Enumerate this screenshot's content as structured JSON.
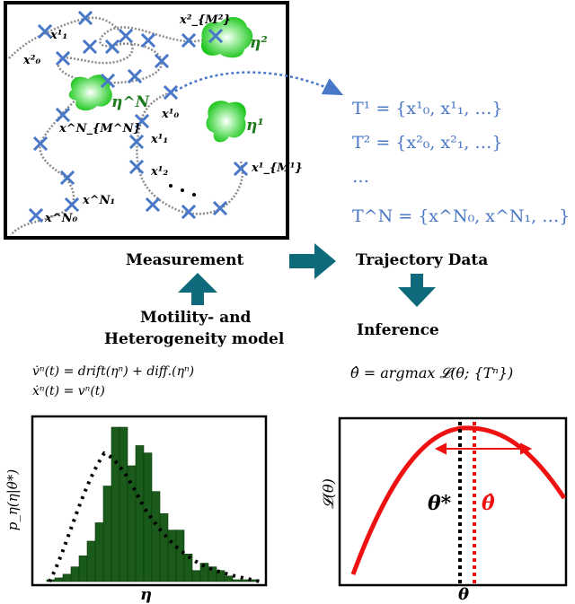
{
  "measurement": {
    "cell_labels": [
      "η²",
      "η^N",
      "η¹"
    ],
    "point_labels": [
      {
        "t": "x¹₁",
        "pos": "a"
      },
      {
        "t": "x²₀",
        "pos": "b"
      },
      {
        "t": "x²_{M²}",
        "pos": "c"
      },
      {
        "t": "x^N_{M^N}",
        "pos": "d"
      },
      {
        "t": "x¹₀",
        "pos": "e"
      },
      {
        "t": "x¹₁",
        "pos": "f"
      },
      {
        "t": "x¹₂",
        "pos": "g"
      },
      {
        "t": "x¹_{M¹}",
        "pos": "h"
      },
      {
        "t": "x^N₁",
        "pos": "i"
      },
      {
        "t": "x^N₀",
        "pos": "j"
      }
    ],
    "ellipsis": ". . ."
  },
  "trajectory_equations": [
    "T¹ = {x¹₀, x¹₁, …}",
    "T² = {x²₀, x²₁, …}",
    "…",
    "T^N = {x^N₀, x^N₁, …}"
  ],
  "flow": {
    "measurement": "Measurement",
    "trajectory_data": "Trajectory Data",
    "model_line1": "Motility- and",
    "model_line2": "Heterogeneity model",
    "inference": "Inference"
  },
  "equations": {
    "motion1": "v̇ⁿ(t) = drift(ηⁿ) + diff.(ηⁿ)",
    "motion2": "ẋⁿ(t) = vⁿ(t)",
    "estimator": "θ̂ = argmax 𝓛(θ; {Tⁿ})"
  },
  "chart_data": [
    {
      "type": "bar",
      "title": "",
      "xlabel": "η",
      "ylabel": "p_η(η|θ*)",
      "values": [
        1,
        2,
        4,
        8,
        14,
        22,
        32,
        52,
        84,
        84,
        63,
        74,
        70,
        49,
        37,
        28,
        28,
        15,
        6,
        10,
        8,
        6,
        3,
        1,
        1,
        1
      ],
      "curve": "dotted",
      "colors": {
        "bar": "#1a5a1a",
        "curve": "#000000"
      }
    },
    {
      "type": "line",
      "title": "",
      "xlabel": "θ",
      "ylabel": "𝓛(θ)",
      "line_labels": [
        "θ*",
        "θ̂"
      ],
      "colors": {
        "curve": "#ee1111",
        "true": "#000000",
        "estimate": "#ee1111"
      }
    }
  ]
}
